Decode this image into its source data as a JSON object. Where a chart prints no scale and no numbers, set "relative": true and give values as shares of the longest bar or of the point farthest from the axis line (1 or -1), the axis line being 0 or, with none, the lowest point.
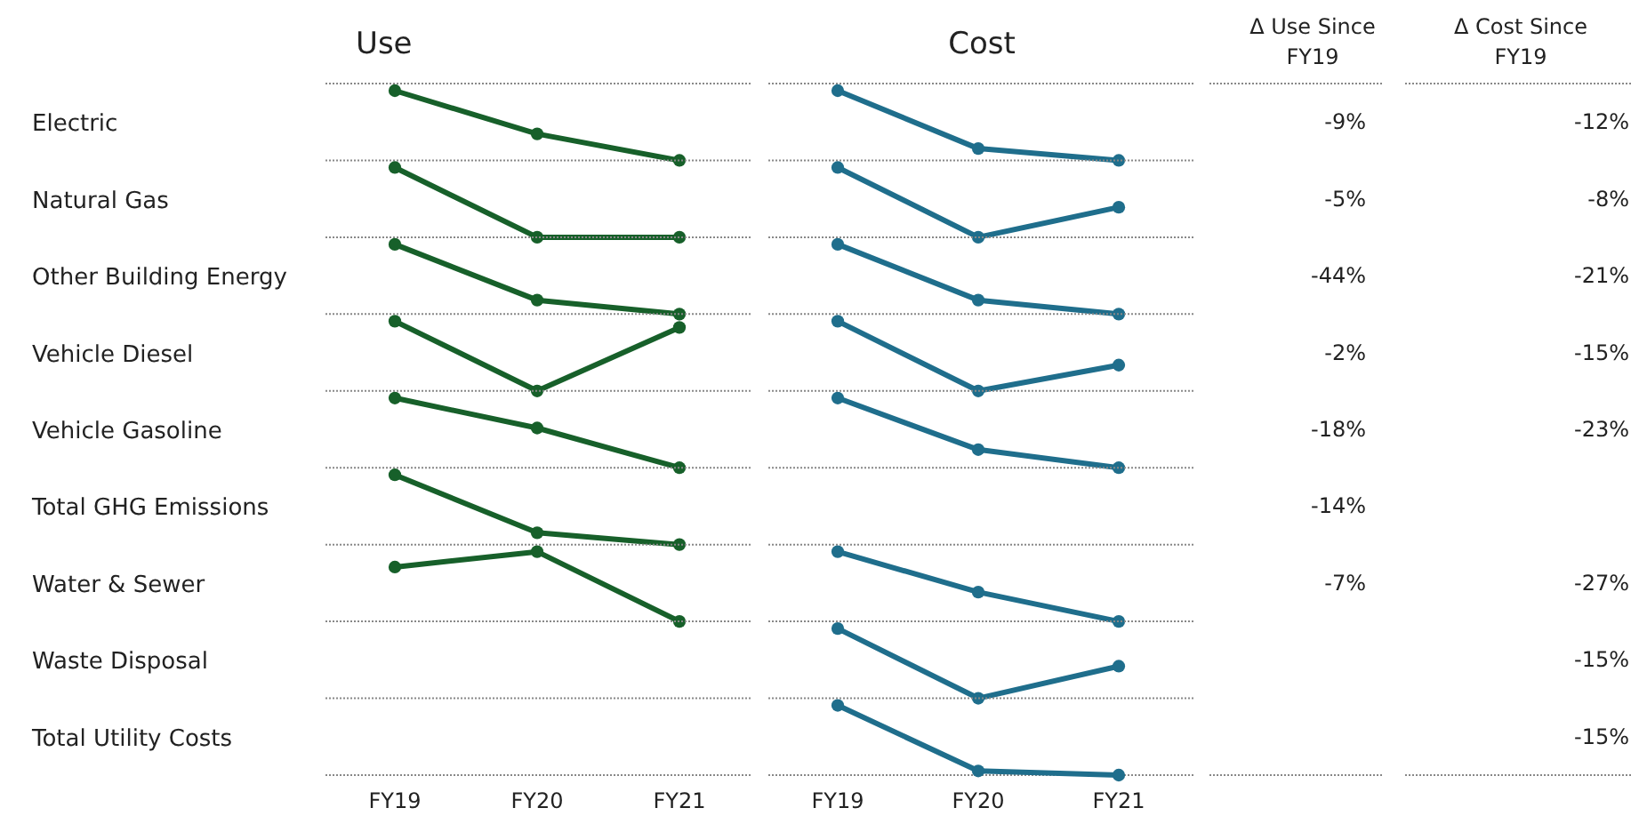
{
  "chart_data": [
    {
      "type": "line",
      "title": "Use",
      "ylabel": "Electric",
      "categories": [
        null,
        null,
        null
      ],
      "values": [
        1,
        0.38,
        0
      ],
      "color": "#17602a",
      "relative": true,
      "marker": "circle",
      "annotations": [
        "-9%"
      ]
    },
    {
      "type": "line",
      "ylabel": "Natural Gas",
      "categories": [
        null,
        null,
        null
      ],
      "values": [
        1,
        0,
        0
      ],
      "color": "#17602a",
      "relative": true,
      "marker": "circle",
      "annotations": [
        "-5%"
      ]
    },
    {
      "type": "line",
      "ylabel": "Other Building Energy",
      "categories": [
        null,
        null,
        null
      ],
      "values": [
        1,
        0.2,
        0
      ],
      "color": "#17602a",
      "relative": true,
      "marker": "circle",
      "annotations": [
        "-44%"
      ]
    },
    {
      "type": "line",
      "ylabel": "Vehicle Diesel",
      "categories": [
        null,
        null,
        null
      ],
      "values": [
        1,
        0,
        0.91
      ],
      "color": "#17602a",
      "relative": true,
      "marker": "circle",
      "annotations": [
        "-2%"
      ]
    },
    {
      "type": "line",
      "ylabel": "Vehicle Gasoline",
      "categories": [
        null,
        null,
        null
      ],
      "values": [
        1,
        0.57,
        0
      ],
      "color": "#17602a",
      "relative": true,
      "marker": "circle",
      "annotations": [
        "-18%"
      ]
    },
    {
      "type": "line",
      "ylabel": "Total GHG Emissions",
      "categories": [
        null,
        null,
        null
      ],
      "values": [
        1,
        0.17,
        0
      ],
      "color": "#17602a",
      "relative": true,
      "marker": "circle",
      "annotations": [
        "-14%"
      ]
    },
    {
      "type": "line",
      "ylabel": "Water & Sewer",
      "categories": [
        "FY19",
        "FY20",
        "FY21"
      ],
      "values": [
        0.78,
        1,
        0
      ],
      "color": "#17602a",
      "relative": true,
      "marker": "circle",
      "annotations": [
        "-7%"
      ]
    },
    {
      "type": "other",
      "ylabel": "Waste Disposal"
    },
    {
      "type": "other",
      "ylabel": "Total Utility Costs"
    },
    {
      "type": "line",
      "title": "Cost",
      "categories": [
        null,
        null,
        null
      ],
      "values": [
        1,
        0.17,
        0
      ],
      "color": "#1f6e8c",
      "relative": true,
      "marker": "circle",
      "annotations": [
        "-12%"
      ]
    },
    {
      "type": "line",
      "categories": [
        null,
        null,
        null
      ],
      "values": [
        1,
        0,
        0.43
      ],
      "color": "#1f6e8c",
      "relative": true,
      "marker": "circle",
      "annotations": [
        "-8%"
      ]
    },
    {
      "type": "line",
      "categories": [
        null,
        null,
        null
      ],
      "values": [
        1,
        0.2,
        0
      ],
      "color": "#1f6e8c",
      "relative": true,
      "marker": "circle",
      "annotations": [
        "-21%"
      ]
    },
    {
      "type": "line",
      "categories": [
        null,
        null,
        null
      ],
      "values": [
        1,
        0,
        0.37
      ],
      "color": "#1f6e8c",
      "relative": true,
      "marker": "circle",
      "annotations": [
        "-15%"
      ]
    },
    {
      "type": "line",
      "categories": [
        null,
        null,
        null
      ],
      "values": [
        1,
        0.26,
        0
      ],
      "color": "#1f6e8c",
      "relative": true,
      "marker": "circle",
      "annotations": [
        "-23%"
      ]
    },
    {
      "type": "other"
    },
    {
      "type": "line",
      "categories": [
        null,
        null,
        null
      ],
      "values": [
        1,
        0.42,
        0
      ],
      "color": "#1f6e8c",
      "relative": true,
      "marker": "circle",
      "annotations": [
        "-27%"
      ]
    },
    {
      "type": "line",
      "categories": [
        null,
        null,
        null
      ],
      "values": [
        1,
        0,
        0.46
      ],
      "color": "#1f6e8c",
      "relative": true,
      "marker": "circle",
      "annotations": [
        "-15%"
      ]
    },
    {
      "type": "line",
      "categories": [
        "FY19",
        "FY20",
        "FY21"
      ],
      "values": [
        1,
        0.06,
        0
      ],
      "color": "#1f6e8c",
      "relative": true,
      "marker": "circle",
      "annotations": [
        "-15%"
      ]
    },
    {
      "type": "other",
      "title": "Δ Use Since FY19"
    },
    {
      "type": "other",
      "title": "Δ Cost Since FY19"
    }
  ]
}
